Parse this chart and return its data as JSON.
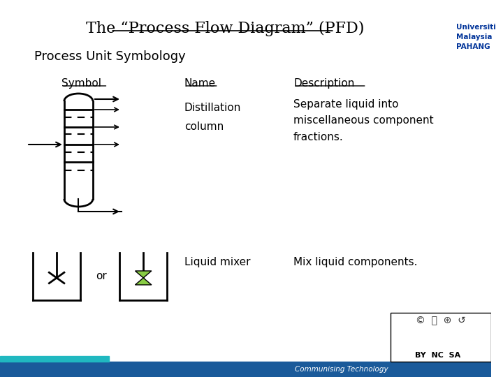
{
  "title": "The “Process Flow Diagram” (PFD)",
  "subtitle": "Process Unit Symbology",
  "col_headers": [
    "Symbol",
    "Name",
    "Description"
  ],
  "row1_name": "Distillation\ncolumn",
  "row1_desc": "Separate liquid into\nmiscellaneous component\nfractions.",
  "row2_name": "Liquid mixer",
  "row2_desc": "Mix liquid components.",
  "bg_color": "#ffffff",
  "title_color": "#000000",
  "footer_bg": "#1a5a9a",
  "footer_teal": "#20b8c0",
  "footer_text": "Communising Technology",
  "ump_text": "Universiti\nMalaysia\nPAHANG",
  "lw": 2.0,
  "dashed_lw": 1.5
}
